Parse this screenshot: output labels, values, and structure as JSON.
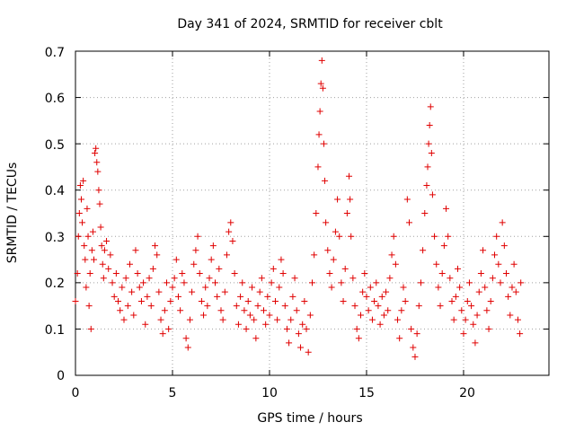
{
  "chart_data": {
    "type": "scatter",
    "title": "Day 341 of 2024, SRMTID for receiver cblt",
    "xlabel": "GPS time / hours",
    "ylabel": "SRMTID / TECUs",
    "xlim": [
      0,
      24.4
    ],
    "ylim": [
      0,
      0.7
    ],
    "x_ticks": [
      0,
      5,
      10,
      15,
      20
    ],
    "y_ticks": [
      0,
      0.1,
      0.2,
      0.3,
      0.4,
      0.5,
      0.6,
      0.7
    ],
    "x_tick_labels": [
      "0",
      "5",
      "10",
      "15",
      "20"
    ],
    "y_tick_labels": [
      "0",
      "0.1",
      "0.2",
      "0.3",
      "0.4",
      "0.5",
      "0.6",
      "0.7"
    ],
    "grid": true,
    "marker": "+",
    "colors": {
      "points": "#e00000",
      "grid": "#a0a0a0",
      "axis": "#000000"
    },
    "series": [
      {
        "name": "SRMTID",
        "points": [
          [
            0.0,
            0.16
          ],
          [
            0.1,
            0.22
          ],
          [
            0.15,
            0.3
          ],
          [
            0.2,
            0.35
          ],
          [
            0.25,
            0.41
          ],
          [
            0.3,
            0.38
          ],
          [
            0.35,
            0.33
          ],
          [
            0.4,
            0.42
          ],
          [
            0.45,
            0.28
          ],
          [
            0.5,
            0.25
          ],
          [
            0.55,
            0.19
          ],
          [
            0.6,
            0.36
          ],
          [
            0.65,
            0.3
          ],
          [
            0.7,
            0.15
          ],
          [
            0.75,
            0.22
          ],
          [
            0.8,
            0.1
          ],
          [
            0.85,
            0.27
          ],
          [
            0.9,
            0.31
          ],
          [
            0.95,
            0.25
          ],
          [
            1.0,
            0.48
          ],
          [
            1.05,
            0.49
          ],
          [
            1.1,
            0.46
          ],
          [
            1.15,
            0.44
          ],
          [
            1.2,
            0.4
          ],
          [
            1.25,
            0.37
          ],
          [
            1.3,
            0.32
          ],
          [
            1.35,
            0.28
          ],
          [
            1.4,
            0.24
          ],
          [
            1.45,
            0.21
          ],
          [
            1.5,
            0.27
          ],
          [
            1.6,
            0.29
          ],
          [
            1.7,
            0.23
          ],
          [
            1.8,
            0.26
          ],
          [
            1.9,
            0.2
          ],
          [
            2.0,
            0.17
          ],
          [
            2.1,
            0.22
          ],
          [
            2.2,
            0.16
          ],
          [
            2.3,
            0.14
          ],
          [
            2.4,
            0.19
          ],
          [
            2.5,
            0.12
          ],
          [
            2.6,
            0.21
          ],
          [
            2.7,
            0.15
          ],
          [
            2.8,
            0.24
          ],
          [
            2.9,
            0.18
          ],
          [
            3.0,
            0.13
          ],
          [
            3.1,
            0.27
          ],
          [
            3.2,
            0.22
          ],
          [
            3.3,
            0.19
          ],
          [
            3.4,
            0.16
          ],
          [
            3.5,
            0.2
          ],
          [
            3.6,
            0.11
          ],
          [
            3.7,
            0.17
          ],
          [
            3.8,
            0.21
          ],
          [
            3.9,
            0.15
          ],
          [
            4.0,
            0.23
          ],
          [
            4.1,
            0.28
          ],
          [
            4.2,
            0.26
          ],
          [
            4.3,
            0.18
          ],
          [
            4.4,
            0.12
          ],
          [
            4.5,
            0.09
          ],
          [
            4.6,
            0.14
          ],
          [
            4.7,
            0.2
          ],
          [
            4.8,
            0.1
          ],
          [
            4.9,
            0.16
          ],
          [
            5.0,
            0.19
          ],
          [
            5.1,
            0.21
          ],
          [
            5.2,
            0.25
          ],
          [
            5.3,
            0.17
          ],
          [
            5.4,
            0.14
          ],
          [
            5.5,
            0.22
          ],
          [
            5.6,
            0.2
          ],
          [
            5.7,
            0.08
          ],
          [
            5.8,
            0.06
          ],
          [
            5.9,
            0.12
          ],
          [
            6.0,
            0.18
          ],
          [
            6.1,
            0.24
          ],
          [
            6.2,
            0.27
          ],
          [
            6.3,
            0.3
          ],
          [
            6.4,
            0.22
          ],
          [
            6.5,
            0.16
          ],
          [
            6.6,
            0.13
          ],
          [
            6.7,
            0.19
          ],
          [
            6.8,
            0.15
          ],
          [
            6.9,
            0.21
          ],
          [
            7.0,
            0.25
          ],
          [
            7.1,
            0.28
          ],
          [
            7.2,
            0.2
          ],
          [
            7.3,
            0.17
          ],
          [
            7.4,
            0.23
          ],
          [
            7.5,
            0.14
          ],
          [
            7.6,
            0.12
          ],
          [
            7.7,
            0.18
          ],
          [
            7.8,
            0.26
          ],
          [
            7.9,
            0.31
          ],
          [
            8.0,
            0.33
          ],
          [
            8.1,
            0.29
          ],
          [
            8.2,
            0.22
          ],
          [
            8.3,
            0.15
          ],
          [
            8.4,
            0.11
          ],
          [
            8.5,
            0.17
          ],
          [
            8.6,
            0.2
          ],
          [
            8.7,
            0.14
          ],
          [
            8.8,
            0.1
          ],
          [
            8.9,
            0.16
          ],
          [
            9.0,
            0.13
          ],
          [
            9.1,
            0.19
          ],
          [
            9.2,
            0.12
          ],
          [
            9.3,
            0.08
          ],
          [
            9.4,
            0.15
          ],
          [
            9.5,
            0.18
          ],
          [
            9.6,
            0.21
          ],
          [
            9.7,
            0.14
          ],
          [
            9.8,
            0.11
          ],
          [
            9.9,
            0.17
          ],
          [
            10.0,
            0.13
          ],
          [
            10.1,
            0.2
          ],
          [
            10.2,
            0.23
          ],
          [
            10.3,
            0.16
          ],
          [
            10.4,
            0.12
          ],
          [
            10.5,
            0.19
          ],
          [
            10.6,
            0.25
          ],
          [
            10.7,
            0.22
          ],
          [
            10.8,
            0.15
          ],
          [
            10.9,
            0.1
          ],
          [
            11.0,
            0.07
          ],
          [
            11.1,
            0.12
          ],
          [
            11.2,
            0.17
          ],
          [
            11.3,
            0.21
          ],
          [
            11.4,
            0.14
          ],
          [
            11.5,
            0.09
          ],
          [
            11.6,
            0.06
          ],
          [
            11.7,
            0.11
          ],
          [
            11.8,
            0.16
          ],
          [
            11.9,
            0.1
          ],
          [
            12.0,
            0.05
          ],
          [
            12.1,
            0.13
          ],
          [
            12.2,
            0.2
          ],
          [
            12.3,
            0.26
          ],
          [
            12.4,
            0.35
          ],
          [
            12.5,
            0.45
          ],
          [
            12.55,
            0.52
          ],
          [
            12.6,
            0.57
          ],
          [
            12.65,
            0.63
          ],
          [
            12.7,
            0.68
          ],
          [
            12.75,
            0.62
          ],
          [
            12.8,
            0.5
          ],
          [
            12.85,
            0.42
          ],
          [
            12.9,
            0.33
          ],
          [
            13.0,
            0.27
          ],
          [
            13.1,
            0.22
          ],
          [
            13.2,
            0.19
          ],
          [
            13.3,
            0.25
          ],
          [
            13.4,
            0.31
          ],
          [
            13.5,
            0.38
          ],
          [
            13.6,
            0.3
          ],
          [
            13.7,
            0.2
          ],
          [
            13.8,
            0.16
          ],
          [
            13.9,
            0.23
          ],
          [
            14.0,
            0.35
          ],
          [
            14.1,
            0.43
          ],
          [
            14.15,
            0.38
          ],
          [
            14.2,
            0.3
          ],
          [
            14.3,
            0.21
          ],
          [
            14.4,
            0.15
          ],
          [
            14.5,
            0.1
          ],
          [
            14.6,
            0.08
          ],
          [
            14.7,
            0.13
          ],
          [
            14.8,
            0.18
          ],
          [
            14.9,
            0.22
          ],
          [
            15.0,
            0.17
          ],
          [
            15.1,
            0.14
          ],
          [
            15.2,
            0.19
          ],
          [
            15.3,
            0.12
          ],
          [
            15.4,
            0.16
          ],
          [
            15.5,
            0.2
          ],
          [
            15.6,
            0.15
          ],
          [
            15.7,
            0.11
          ],
          [
            15.8,
            0.17
          ],
          [
            15.9,
            0.13
          ],
          [
            16.0,
            0.18
          ],
          [
            16.1,
            0.14
          ],
          [
            16.2,
            0.21
          ],
          [
            16.3,
            0.26
          ],
          [
            16.4,
            0.3
          ],
          [
            16.5,
            0.24
          ],
          [
            16.6,
            0.12
          ],
          [
            16.7,
            0.08
          ],
          [
            16.8,
            0.14
          ],
          [
            16.9,
            0.19
          ],
          [
            17.0,
            0.16
          ],
          [
            17.1,
            0.38
          ],
          [
            17.2,
            0.33
          ],
          [
            17.3,
            0.1
          ],
          [
            17.4,
            0.06
          ],
          [
            17.5,
            0.04
          ],
          [
            17.6,
            0.09
          ],
          [
            17.7,
            0.15
          ],
          [
            17.8,
            0.2
          ],
          [
            17.9,
            0.27
          ],
          [
            18.0,
            0.35
          ],
          [
            18.1,
            0.41
          ],
          [
            18.15,
            0.45
          ],
          [
            18.2,
            0.5
          ],
          [
            18.25,
            0.54
          ],
          [
            18.3,
            0.58
          ],
          [
            18.35,
            0.48
          ],
          [
            18.4,
            0.39
          ],
          [
            18.5,
            0.3
          ],
          [
            18.6,
            0.24
          ],
          [
            18.7,
            0.19
          ],
          [
            18.8,
            0.15
          ],
          [
            18.9,
            0.22
          ],
          [
            19.0,
            0.28
          ],
          [
            19.1,
            0.36
          ],
          [
            19.2,
            0.3
          ],
          [
            19.3,
            0.21
          ],
          [
            19.4,
            0.16
          ],
          [
            19.5,
            0.12
          ],
          [
            19.6,
            0.17
          ],
          [
            19.7,
            0.23
          ],
          [
            19.8,
            0.19
          ],
          [
            19.9,
            0.14
          ],
          [
            20.0,
            0.09
          ],
          [
            20.1,
            0.12
          ],
          [
            20.2,
            0.16
          ],
          [
            20.3,
            0.2
          ],
          [
            20.4,
            0.15
          ],
          [
            20.5,
            0.11
          ],
          [
            20.6,
            0.07
          ],
          [
            20.7,
            0.13
          ],
          [
            20.8,
            0.18
          ],
          [
            20.9,
            0.22
          ],
          [
            21.0,
            0.27
          ],
          [
            21.1,
            0.19
          ],
          [
            21.2,
            0.14
          ],
          [
            21.3,
            0.1
          ],
          [
            21.4,
            0.16
          ],
          [
            21.5,
            0.21
          ],
          [
            21.6,
            0.26
          ],
          [
            21.7,
            0.3
          ],
          [
            21.8,
            0.24
          ],
          [
            21.9,
            0.2
          ],
          [
            22.0,
            0.33
          ],
          [
            22.1,
            0.28
          ],
          [
            22.2,
            0.22
          ],
          [
            22.3,
            0.17
          ],
          [
            22.4,
            0.13
          ],
          [
            22.5,
            0.19
          ],
          [
            22.6,
            0.24
          ],
          [
            22.7,
            0.18
          ],
          [
            22.8,
            0.12
          ],
          [
            22.9,
            0.09
          ],
          [
            22.95,
            0.2
          ]
        ]
      }
    ]
  }
}
